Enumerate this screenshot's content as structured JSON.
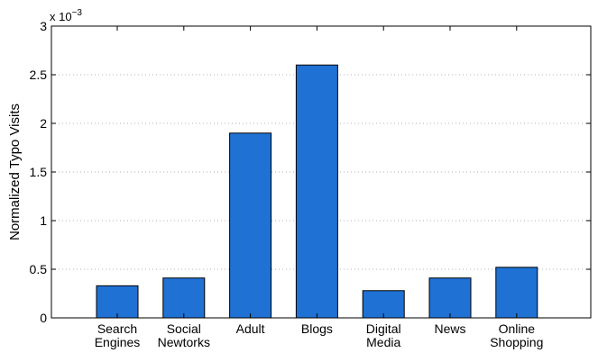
{
  "chart_data": {
    "type": "bar",
    "categories": [
      [
        "Search",
        "Engines"
      ],
      [
        "Social",
        "Newtorks"
      ],
      [
        "Adult"
      ],
      [
        "Blogs"
      ],
      [
        "Digital",
        "Media"
      ],
      [
        "News"
      ],
      [
        "Online",
        "Shopping"
      ]
    ],
    "values": [
      0.00033,
      0.00041,
      0.0019,
      0.0026,
      0.00028,
      0.00041,
      0.00052
    ],
    "title": "",
    "xlabel": "",
    "ylabel": "Normalized Typo Visits",
    "ylim": [
      0,
      0.003
    ],
    "yticks": [
      0,
      0.0005,
      0.001,
      0.0015,
      0.002,
      0.0025,
      0.003
    ],
    "ytick_labels": [
      "0",
      "0.5",
      "1",
      "1.5",
      "2",
      "2.5",
      "3"
    ],
    "y_multiplier": {
      "base": "x 10",
      "exponent": "−3"
    },
    "grid": "horizontal dotted",
    "bar_color": "#1f71d4",
    "legend": "none"
  }
}
